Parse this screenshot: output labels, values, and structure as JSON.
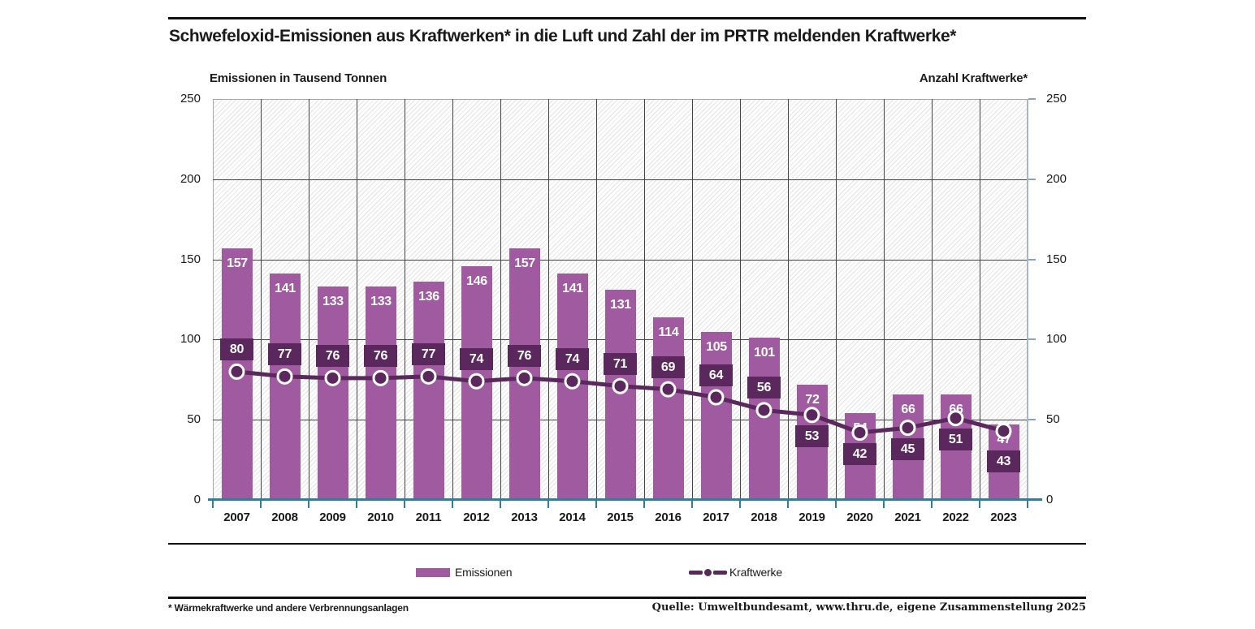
{
  "title": "Schwefeloxid-Emissionen aus Kraftwerken* in die Luft und Zahl der im PRTR meldenden Kraftwerke*",
  "axes": {
    "left_header": "Emissionen in Tausend Tonnen",
    "right_header": "Anzahl Kraftwerke*"
  },
  "legend": [
    {
      "label": "Emissionen"
    },
    {
      "label": "Kraftwerke"
    }
  ],
  "footer": {
    "footnote": "* Wärmekraftwerke und andere Verbrennungsanlagen",
    "source": "Quelle: Umweltbundesamt, www.thru.de, eigene Zusammenstellung 2025"
  },
  "colors": {
    "bar": "#a05aa0",
    "dark_purple": "#5a285c",
    "axis_teal": "#2e7e9e",
    "right_axis_blue": "#a4b7c9",
    "right_axis_tick": "#8aa2b8",
    "gridline": "#444444",
    "text": "#1a1a1a"
  },
  "chart_data": {
    "type": "bar",
    "title": "Schwefeloxid-Emissionen aus Kraftwerken* in die Luft und Zahl der im PRTR meldenden Kraftwerke*",
    "categories": [
      "2007",
      "2008",
      "2009",
      "2010",
      "2011",
      "2012",
      "2013",
      "2014",
      "2015",
      "2016",
      "2017",
      "2018",
      "2019",
      "2020",
      "2021",
      "2022",
      "2023"
    ],
    "series": [
      {
        "name": "Emissionen",
        "type": "bar",
        "axis": "left",
        "unit": "Tausend Tonnen",
        "values": [
          157,
          141,
          133,
          133,
          136,
          146,
          157,
          141,
          131,
          114,
          105,
          101,
          72,
          54,
          66,
          66,
          47
        ]
      },
      {
        "name": "Kraftwerke",
        "type": "line",
        "axis": "right",
        "values": [
          80,
          77,
          76,
          76,
          77,
          74,
          76,
          74,
          71,
          69,
          64,
          56,
          53,
          42,
          45,
          51,
          43
        ],
        "label_side": [
          "above",
          "above",
          "above",
          "above",
          "above",
          "above",
          "above",
          "above",
          "above",
          "above",
          "above",
          "above",
          "below",
          "below",
          "below",
          "below",
          "below"
        ]
      }
    ],
    "ylabel_left": "Emissionen in Tausend Tonnen",
    "ylabel_right": "Anzahl Kraftwerke*",
    "ylim": [
      0,
      250
    ],
    "yticks": [
      0,
      50,
      100,
      150,
      200,
      250
    ],
    "grid": true,
    "legend_position": "bottom"
  }
}
